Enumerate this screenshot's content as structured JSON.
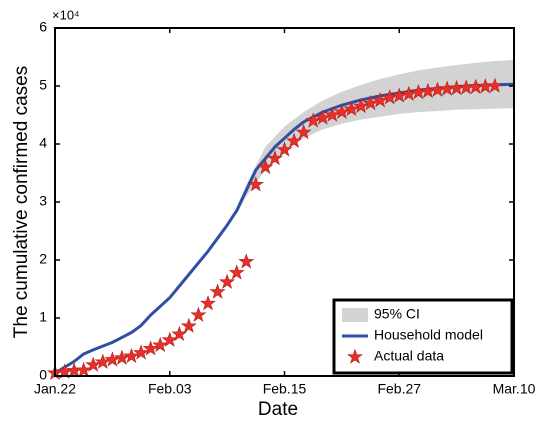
{
  "chart_data": {
    "type": "line",
    "xlabel": "Date",
    "ylabel": "The cumulative confirmed cases",
    "y_exponent": "×10⁴",
    "xlim": [
      0,
      48
    ],
    "xticks": [
      {
        "value": 0,
        "label": "Jan.22"
      },
      {
        "value": 12,
        "label": "Feb.03"
      },
      {
        "value": 24,
        "label": "Feb.15"
      },
      {
        "value": 36,
        "label": "Feb.27"
      },
      {
        "value": 48,
        "label": "Mar.10"
      }
    ],
    "ylim": [
      0,
      6
    ],
    "yticks": [
      0,
      1,
      2,
      3,
      4,
      5,
      6
    ],
    "legend": "lower-right",
    "series": [
      {
        "name": "95% CI",
        "kind": "band",
        "color": "#d3d3d3",
        "x": [
          19,
          20,
          22,
          24,
          26,
          28,
          30,
          32,
          34,
          36,
          38,
          40,
          42,
          44,
          46,
          48
        ],
        "lower": [
          2.8,
          3.1,
          3.55,
          3.9,
          4.1,
          4.25,
          4.35,
          4.42,
          4.47,
          4.52,
          4.55,
          4.57,
          4.59,
          4.6,
          4.61,
          4.62
        ],
        "upper": [
          2.9,
          3.3,
          3.95,
          4.3,
          4.55,
          4.75,
          4.9,
          5.02,
          5.12,
          5.2,
          5.27,
          5.32,
          5.36,
          5.4,
          5.43,
          5.45
        ]
      },
      {
        "name": "Household model",
        "kind": "line",
        "color": "#2e4fa3",
        "x": [
          0,
          1,
          2,
          3,
          4,
          6,
          8,
          9,
          10,
          12,
          14,
          16,
          18,
          19,
          20,
          21,
          22,
          23,
          24,
          25,
          26,
          28,
          30,
          32,
          34,
          36,
          38,
          40,
          42,
          44,
          46,
          48
        ],
        "values": [
          0.05,
          0.15,
          0.25,
          0.38,
          0.45,
          0.58,
          0.75,
          0.87,
          1.05,
          1.35,
          1.75,
          2.15,
          2.6,
          2.85,
          3.2,
          3.55,
          3.75,
          3.95,
          4.1,
          4.25,
          4.38,
          4.55,
          4.67,
          4.76,
          4.83,
          4.88,
          4.93,
          4.96,
          4.99,
          5.01,
          5.02,
          5.03
        ]
      },
      {
        "name": "Actual data",
        "kind": "scatter",
        "color": "#e8302a",
        "x": [
          0,
          1,
          2,
          3,
          4,
          5,
          6,
          7,
          8,
          9,
          10,
          11,
          12,
          13,
          14,
          15,
          16,
          17,
          18,
          19,
          20,
          21,
          22,
          23,
          24,
          25,
          26,
          27,
          28,
          29,
          30,
          31,
          32,
          33,
          34,
          35,
          36,
          37,
          38,
          39,
          40,
          41,
          42,
          43,
          44,
          45,
          46
        ],
        "values": [
          0.05,
          0.07,
          0.09,
          0.1,
          0.19,
          0.24,
          0.28,
          0.31,
          0.34,
          0.4,
          0.47,
          0.53,
          0.62,
          0.72,
          0.86,
          1.05,
          1.25,
          1.45,
          1.62,
          1.78,
          1.97,
          3.3,
          3.6,
          3.75,
          3.9,
          4.05,
          4.2,
          4.4,
          4.45,
          4.5,
          4.55,
          4.6,
          4.65,
          4.7,
          4.75,
          4.8,
          4.83,
          4.86,
          4.89,
          4.91,
          4.93,
          4.95,
          4.96,
          4.97,
          4.98,
          4.99,
          5.0
        ]
      }
    ]
  }
}
